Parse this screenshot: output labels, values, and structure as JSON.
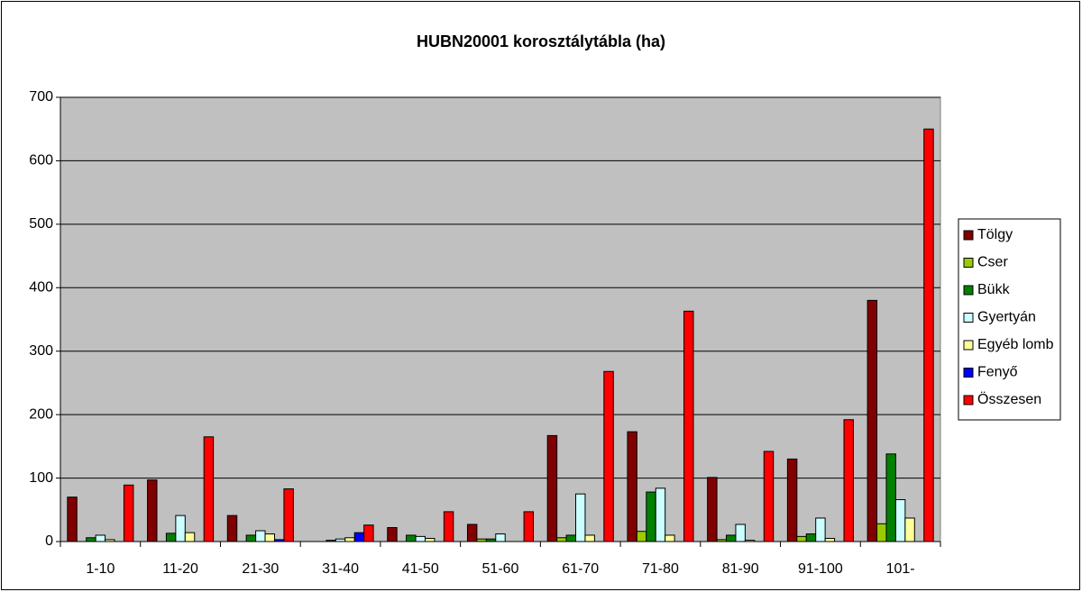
{
  "chart_data": {
    "type": "bar",
    "title": "HUBN20001 korosztálytábla (ha)",
    "categories": [
      "1-10",
      "11-20",
      "21-30",
      "31-40",
      "41-50",
      "51-60",
      "61-70",
      "71-80",
      "81-90",
      "91-100",
      "101-"
    ],
    "series": [
      {
        "name": "Tölgy",
        "color": "#800000",
        "values": [
          70,
          97,
          41,
          0,
          22,
          27,
          167,
          173,
          101,
          130,
          380
        ]
      },
      {
        "name": "Cser",
        "color": "#99cc00",
        "values": [
          0,
          0,
          0,
          0,
          0,
          4,
          6,
          16,
          3,
          8,
          28
        ]
      },
      {
        "name": "Bükk",
        "color": "#008000",
        "values": [
          6,
          13,
          10,
          2,
          10,
          4,
          10,
          78,
          10,
          12,
          138
        ]
      },
      {
        "name": "Gyertyán",
        "color": "#ccffff",
        "values": [
          10,
          41,
          17,
          4,
          8,
          12,
          75,
          84,
          27,
          37,
          66
        ]
      },
      {
        "name": "Egyéb lomb",
        "color": "#ffff99",
        "values": [
          3,
          14,
          12,
          6,
          5,
          0,
          10,
          10,
          2,
          5,
          37
        ]
      },
      {
        "name": "Fenyő",
        "color": "#0000ff",
        "values": [
          0,
          0,
          3,
          14,
          0,
          0,
          0,
          0,
          0,
          0,
          0
        ]
      },
      {
        "name": "Összesen",
        "color": "#ff0000",
        "values": [
          89,
          165,
          83,
          26,
          47,
          47,
          268,
          363,
          142,
          192,
          650
        ]
      }
    ],
    "ylim": [
      0,
      700
    ],
    "yticks": [
      0,
      100,
      200,
      300,
      400,
      500,
      600,
      700
    ],
    "grid": true,
    "legend": "right"
  }
}
